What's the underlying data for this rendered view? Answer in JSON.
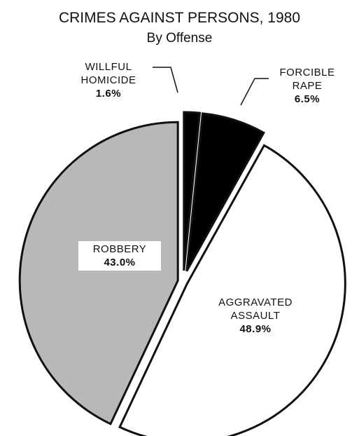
{
  "chart_data": {
    "type": "pie",
    "title": "CRIMES AGAINST PERSONS, 1980",
    "subtitle": "By Offense",
    "categories": [
      "WILLFUL HOMICIDE",
      "FORCIBLE RAPE",
      "AGGRAVATED ASSAULT",
      "ROBBERY"
    ],
    "values": [
      1.6,
      6.5,
      48.9,
      43.0
    ],
    "value_labels": [
      "1.6%",
      "6.5%",
      "48.9%",
      "43.0%"
    ],
    "colors": [
      "#000000",
      "#000000",
      "#ffffff",
      "#b8b8b8"
    ]
  }
}
